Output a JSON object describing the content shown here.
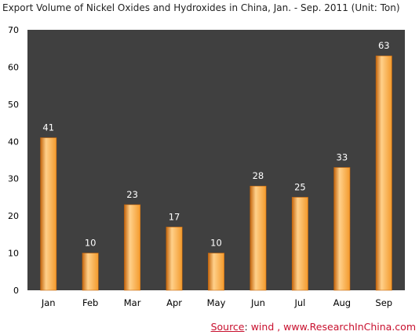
{
  "chart_data": {
    "type": "bar",
    "title": "Export Volume of Nickel Oxides and Hydroxides in China, Jan. - Sep. 2011 (Unit: Ton)",
    "xlabel": "",
    "ylabel": "",
    "categories": [
      "Jan",
      "Feb",
      "Mar",
      "Apr",
      "May",
      "Jun",
      "Jul",
      "Aug",
      "Sep"
    ],
    "values": [
      41,
      10,
      23,
      17,
      10,
      28,
      25,
      33,
      63
    ],
    "ylim": [
      0,
      70
    ],
    "yticks": [
      0,
      10,
      20,
      30,
      40,
      50,
      60,
      70
    ],
    "grid": false,
    "legend": "none",
    "data_labels": true,
    "colors": {
      "plot_background": "#404040",
      "bar_fill": "#f39a2c",
      "bar_highlight": "#ffd08a",
      "bar_shadow": "#c4660e",
      "data_label": "#ffffff",
      "axis_text": "#000000"
    }
  },
  "source": {
    "label": "Source",
    "separator": ":",
    "text": "wind , www.ResearchInChina.com"
  }
}
